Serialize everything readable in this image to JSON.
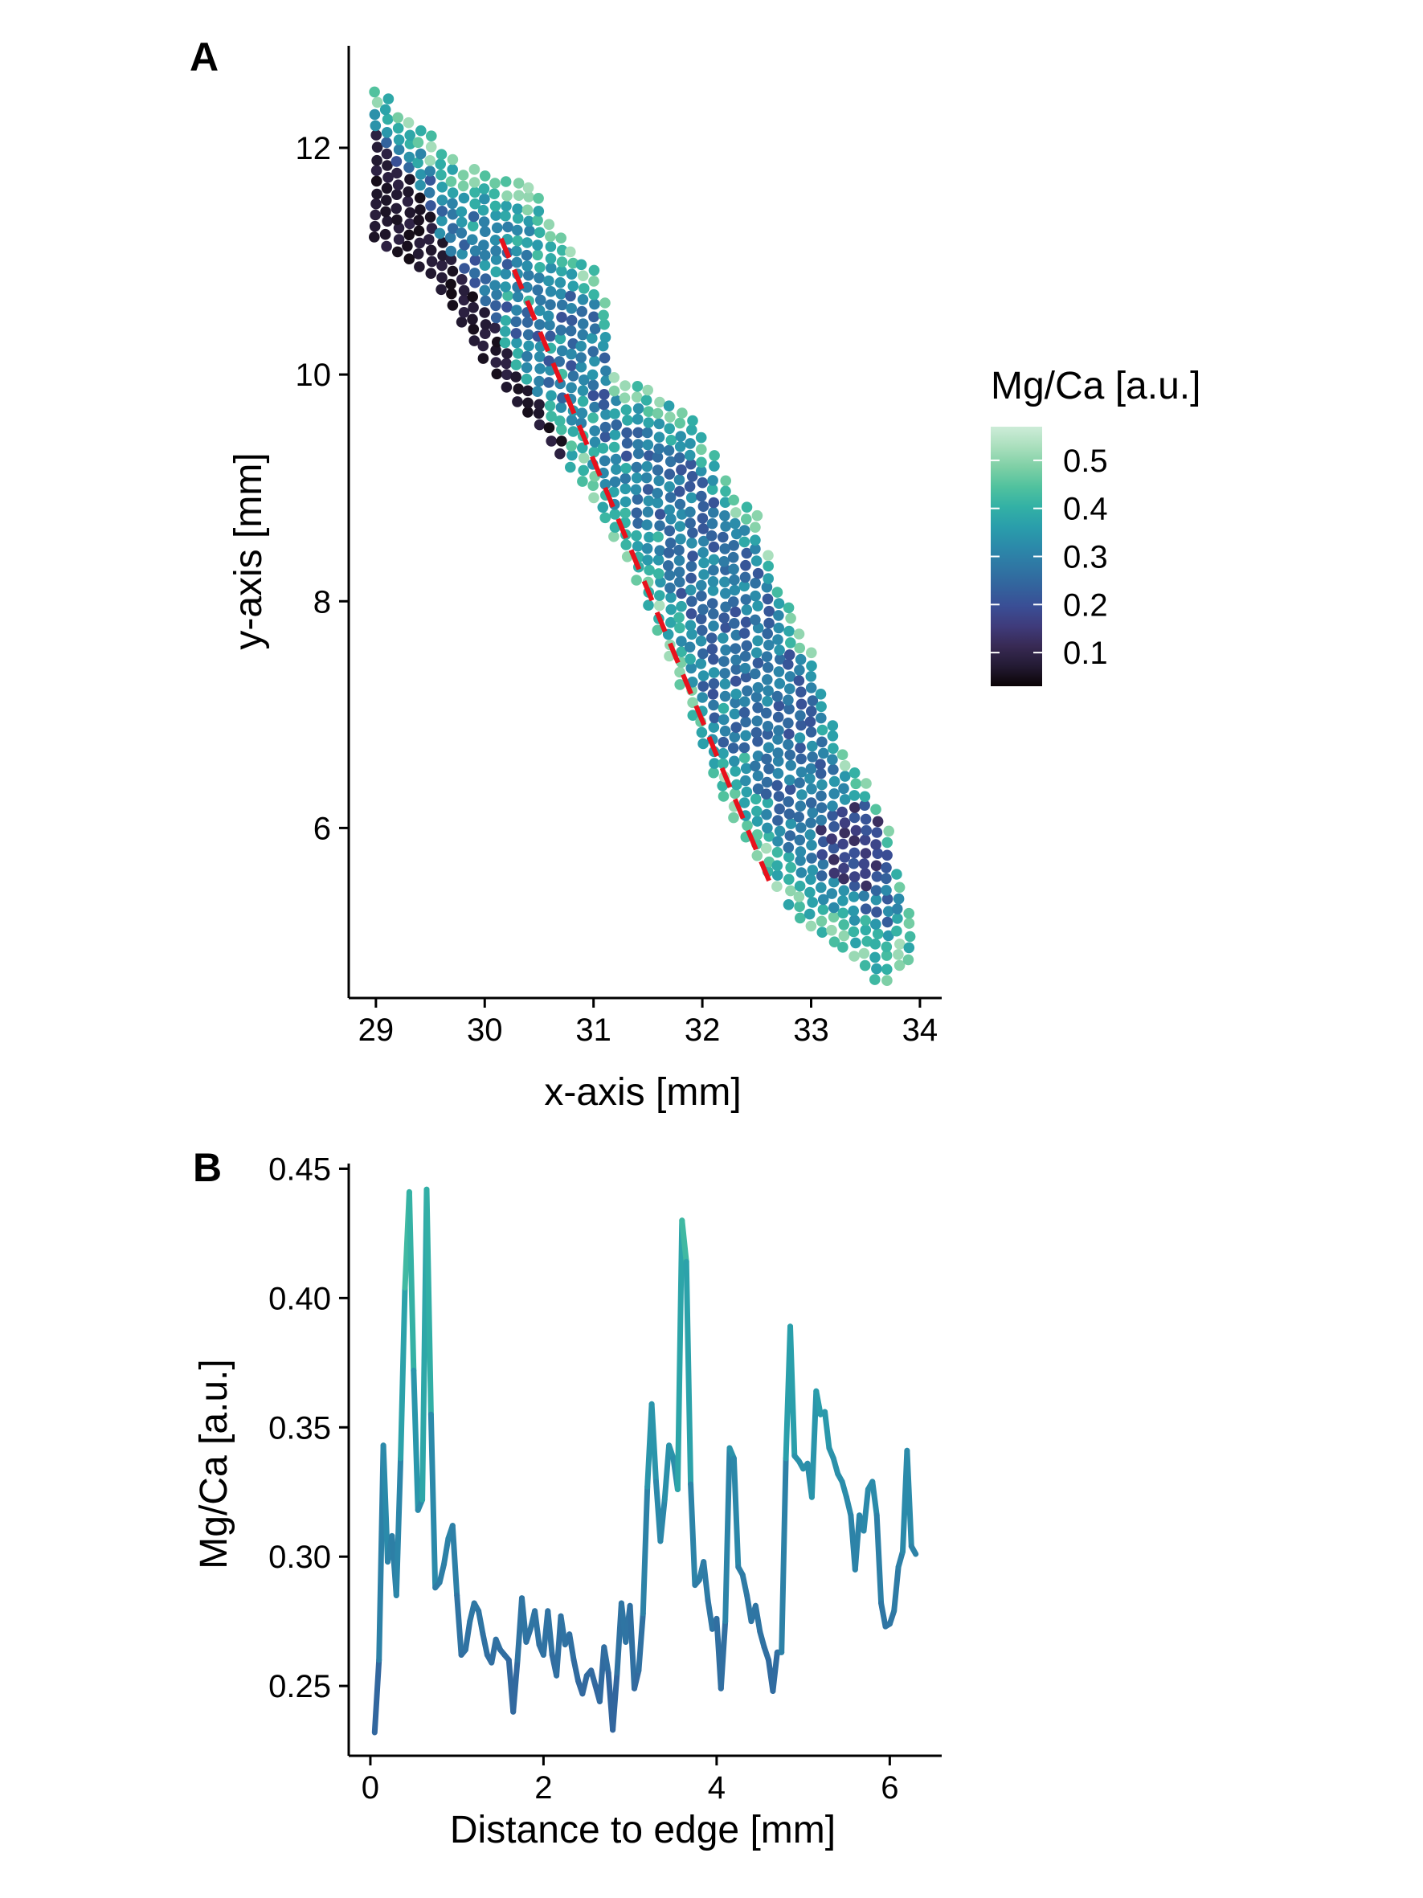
{
  "colorscale": {
    "name": "mako",
    "stops": [
      "#0b0405",
      "#231a33",
      "#382a54",
      "#3f3b7b",
      "#3a4e95",
      "#33639d",
      "#2f77a4",
      "#2b8aaa",
      "#2a9eab",
      "#33b1a5",
      "#51c29e",
      "#7fd0a6",
      "#aadfbd",
      "#cdecd8"
    ],
    "domain": [
      0.03,
      0.57
    ]
  },
  "chart_data": [
    {
      "panel": "A",
      "type": "scatter",
      "xlabel": "x-axis [mm]",
      "ylabel": "y-axis [mm]",
      "xlim": [
        28.75,
        34.2
      ],
      "ylim": [
        4.5,
        12.9
      ],
      "xticks": [
        29,
        30,
        31,
        32,
        33,
        34
      ],
      "yticks": [
        6,
        8,
        10,
        12
      ],
      "legend": {
        "title": "Mg/Ca [a.u.]",
        "placement": "right",
        "ticks": [
          0.1,
          0.2,
          0.3,
          0.4,
          0.5
        ],
        "range": [
          0.03,
          0.57
        ]
      },
      "grid": false,
      "region": {
        "description": "shell cross-section point map, ~0.1 mm grid",
        "upper_edge": [
          [
            29.0,
            12.55
          ],
          [
            29.4,
            12.2
          ],
          [
            29.75,
            11.85
          ],
          [
            30.45,
            11.65
          ],
          [
            30.65,
            11.25
          ],
          [
            31.0,
            10.95
          ],
          [
            31.15,
            10.6
          ],
          [
            31.15,
            10.0
          ],
          [
            31.5,
            9.88
          ],
          [
            31.95,
            9.6
          ],
          [
            32.2,
            9.1
          ],
          [
            32.5,
            8.75
          ],
          [
            32.7,
            8.15
          ],
          [
            33.0,
            7.6
          ],
          [
            33.1,
            7.2
          ],
          [
            33.3,
            6.7
          ],
          [
            33.55,
            6.35
          ],
          [
            33.75,
            5.85
          ],
          [
            33.9,
            5.25
          ]
        ],
        "lower_edge": [
          [
            29.0,
            11.2
          ],
          [
            29.5,
            10.9
          ],
          [
            30.1,
            10.0
          ],
          [
            30.5,
            9.55
          ],
          [
            30.95,
            9.0
          ],
          [
            31.35,
            8.3
          ],
          [
            31.65,
            7.65
          ],
          [
            31.9,
            7.0
          ],
          [
            32.15,
            6.35
          ],
          [
            32.5,
            5.75
          ],
          [
            32.9,
            5.2
          ],
          [
            33.45,
            4.85
          ],
          [
            33.65,
            4.6
          ],
          [
            33.85,
            4.85
          ]
        ],
        "dark_band_edge": [
          [
            29.0,
            12.1
          ],
          [
            29.3,
            11.75
          ],
          [
            29.65,
            11.15
          ],
          [
            29.95,
            10.7
          ],
          [
            30.25,
            10.15
          ],
          [
            30.6,
            9.6
          ],
          [
            30.8,
            9.25
          ]
        ],
        "dark_blob": {
          "x": 33.45,
          "y": 5.85,
          "rx": 0.38,
          "ry": 0.38
        }
      },
      "transect_line": {
        "style": "dashed",
        "color": "#e8121c",
        "x": [
          30.15,
          32.65
        ],
        "y": [
          11.2,
          5.45
        ]
      }
    },
    {
      "panel": "B",
      "type": "line",
      "xlabel": "Distance to edge [mm]",
      "ylabel": "Mg/Ca [a.u.]",
      "xlim": [
        -0.25,
        6.6
      ],
      "ylim": [
        0.223,
        0.452
      ],
      "xticks": [
        0,
        2,
        4,
        6
      ],
      "yticks": [
        "0.25",
        "0.30",
        "0.35",
        "0.40",
        "0.45"
      ],
      "grid": false,
      "x": [
        0.05,
        0.1,
        0.15,
        0.2,
        0.25,
        0.3,
        0.35,
        0.4,
        0.45,
        0.5,
        0.55,
        0.6,
        0.65,
        0.7,
        0.75,
        0.8,
        0.85,
        0.9,
        0.95,
        1.0,
        1.05,
        1.1,
        1.15,
        1.2,
        1.25,
        1.3,
        1.35,
        1.4,
        1.45,
        1.5,
        1.55,
        1.6,
        1.65,
        1.7,
        1.75,
        1.8,
        1.85,
        1.9,
        1.95,
        2.0,
        2.05,
        2.1,
        2.15,
        2.2,
        2.25,
        2.3,
        2.35,
        2.4,
        2.45,
        2.5,
        2.55,
        2.6,
        2.65,
        2.7,
        2.75,
        2.8,
        2.85,
        2.9,
        2.95,
        3.0,
        3.05,
        3.1,
        3.15,
        3.2,
        3.25,
        3.3,
        3.35,
        3.4,
        3.45,
        3.5,
        3.55,
        3.6,
        3.65,
        3.7,
        3.75,
        3.8,
        3.85,
        3.9,
        3.95,
        4.0,
        4.05,
        4.1,
        4.15,
        4.2,
        4.25,
        4.3,
        4.35,
        4.4,
        4.45,
        4.5,
        4.55,
        4.6,
        4.65,
        4.7,
        4.75,
        4.8,
        4.85,
        4.9,
        4.95,
        5.0,
        5.05,
        5.1,
        5.15,
        5.2,
        5.25,
        5.3,
        5.35,
        5.4,
        5.45,
        5.5,
        5.55,
        5.6,
        5.65,
        5.7,
        5.75,
        5.8,
        5.85,
        5.9,
        5.95,
        6.0,
        6.05,
        6.1,
        6.15,
        6.2,
        6.25,
        6.3
      ],
      "values": [
        0.232,
        0.26,
        0.343,
        0.298,
        0.308,
        0.285,
        0.338,
        0.404,
        0.441,
        0.372,
        0.318,
        0.322,
        0.442,
        0.355,
        0.288,
        0.29,
        0.297,
        0.307,
        0.312,
        0.285,
        0.262,
        0.264,
        0.275,
        0.282,
        0.279,
        0.27,
        0.262,
        0.259,
        0.268,
        0.264,
        0.262,
        0.26,
        0.24,
        0.26,
        0.284,
        0.267,
        0.272,
        0.279,
        0.266,
        0.262,
        0.279,
        0.262,
        0.254,
        0.277,
        0.266,
        0.27,
        0.26,
        0.252,
        0.247,
        0.254,
        0.256,
        0.25,
        0.244,
        0.265,
        0.255,
        0.233,
        0.255,
        0.282,
        0.267,
        0.281,
        0.249,
        0.256,
        0.278,
        0.327,
        0.359,
        0.329,
        0.306,
        0.322,
        0.343,
        0.338,
        0.326,
        0.43,
        0.414,
        0.328,
        0.289,
        0.291,
        0.298,
        0.283,
        0.272,
        0.276,
        0.249,
        0.275,
        0.342,
        0.338,
        0.296,
        0.293,
        0.285,
        0.275,
        0.281,
        0.271,
        0.265,
        0.26,
        0.248,
        0.263,
        0.263,
        0.338,
        0.389,
        0.339,
        0.337,
        0.334,
        0.336,
        0.323,
        0.364,
        0.355,
        0.356,
        0.342,
        0.338,
        0.332,
        0.329,
        0.323,
        0.316,
        0.295,
        0.316,
        0.31,
        0.326,
        0.329,
        0.316,
        0.282,
        0.273,
        0.274,
        0.279,
        0.296,
        0.302,
        0.341,
        0.304,
        0.301
      ]
    }
  ]
}
